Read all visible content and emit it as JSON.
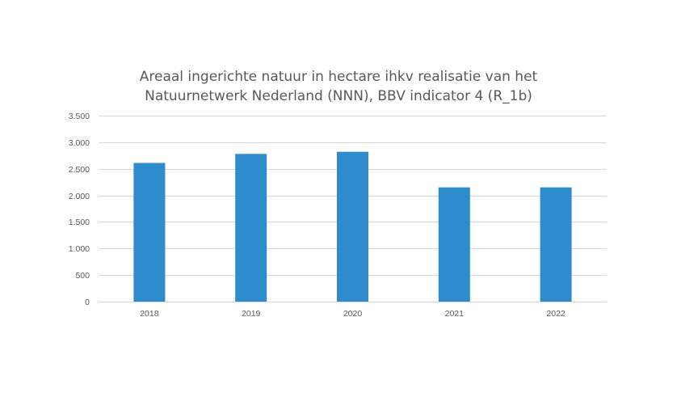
{
  "chart_data": {
    "type": "bar",
    "title_lines": [
      "Areaal ingerichte natuur in hectare ihkv realisatie van het",
      "Natuurnetwerk Nederland (NNN), BBV indicator 4 (R_1b)"
    ],
    "categories": [
      "2018",
      "2019",
      "2020",
      "2021",
      "2022"
    ],
    "values": [
      2610,
      2780,
      2820,
      2150,
      2150
    ],
    "ylim": [
      0,
      3500
    ],
    "yticks": [
      0,
      500,
      1000,
      1500,
      2000,
      2500,
      3000,
      3500
    ],
    "ytick_labels": [
      "0",
      "500",
      "1.000",
      "1.500",
      "2.000",
      "2.500",
      "3.000",
      "3.500"
    ],
    "grid": true,
    "legend": "none",
    "bar_color": "#2E8BCC",
    "grid_color": "#D9D9D9",
    "text_color": "#595959"
  }
}
